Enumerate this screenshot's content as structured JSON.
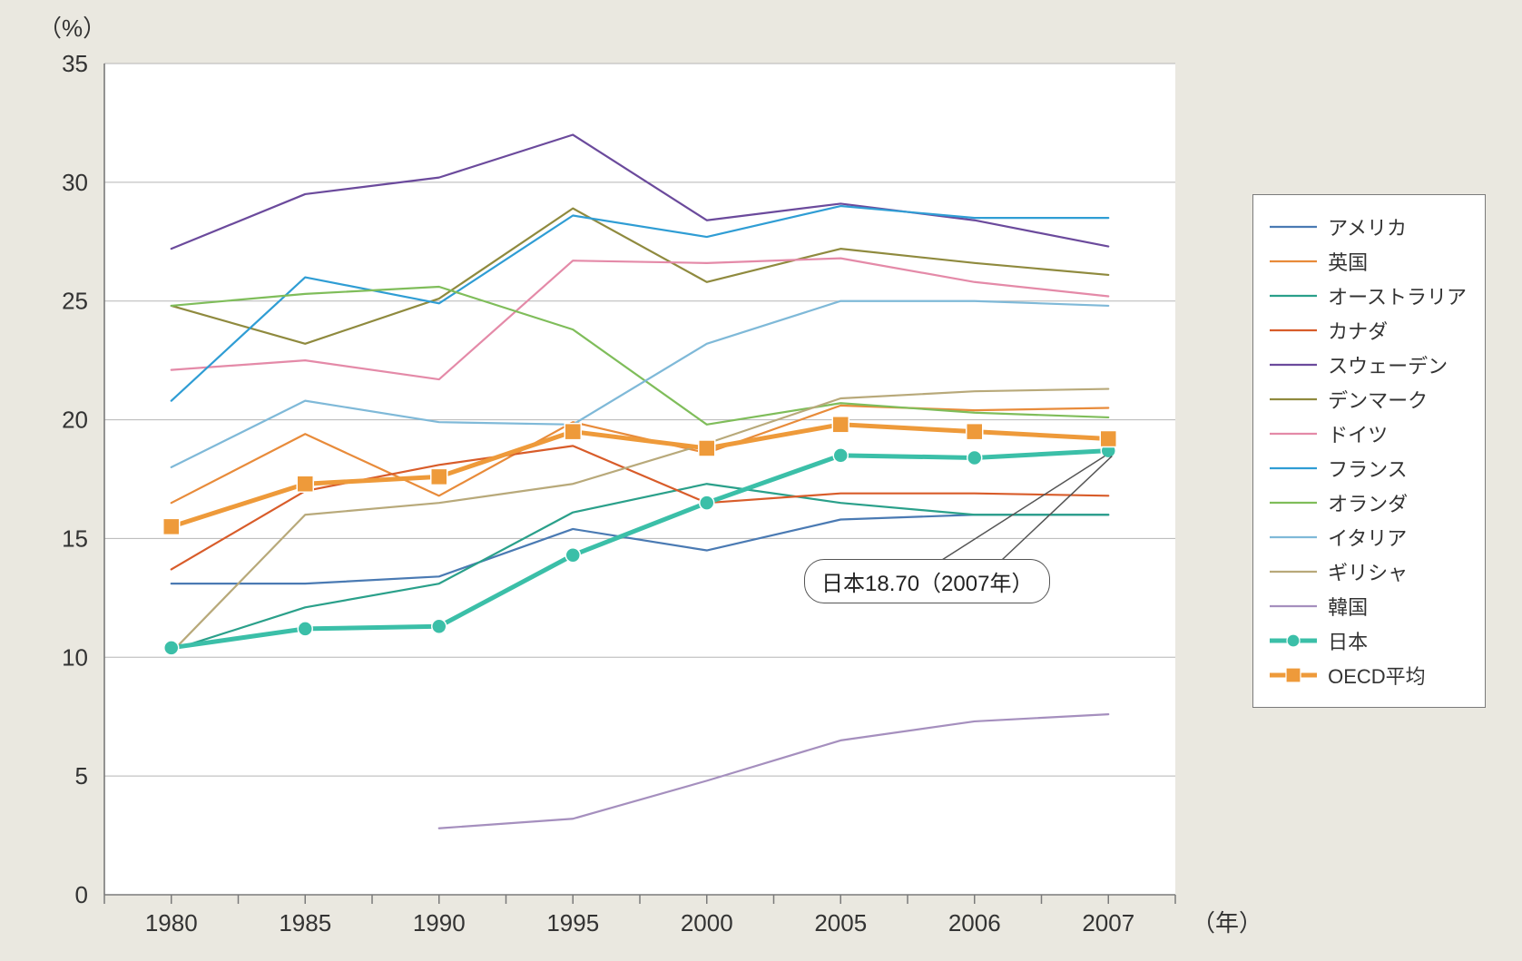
{
  "chart": {
    "type": "line",
    "background_color": "#eae8e0",
    "plot_background_color": "#ffffff",
    "axis_color": "#7a7a7a",
    "grid_color": "#b5b5b5",
    "tick_font_size": 26,
    "tick_font_color": "#333333",
    "y_unit_label": "（%）",
    "x_unit_label": "（年）",
    "ylim": [
      0,
      35
    ],
    "ytick_step": 5,
    "yticks": [
      "0",
      "5",
      "10",
      "15",
      "20",
      "25",
      "30",
      "35"
    ],
    "x_categories": [
      "1980",
      "1985",
      "1990",
      "1995",
      "2000",
      "2005",
      "2006",
      "2007"
    ],
    "line_width_default": 2.2,
    "line_width_highlight": 5,
    "marker_size_japan": 8,
    "marker_size_oecd": 9,
    "series": [
      {
        "name": "アメリカ",
        "color": "#4a7ab3",
        "values": [
          13.1,
          13.1,
          13.4,
          15.4,
          14.5,
          15.8,
          16.0,
          16.0
        ]
      },
      {
        "name": "英国",
        "color": "#e88b3a",
        "values": [
          16.5,
          19.4,
          16.8,
          19.9,
          18.6,
          20.6,
          20.4,
          20.5
        ]
      },
      {
        "name": "オーストラリア",
        "color": "#2aa08a",
        "values": [
          10.3,
          12.1,
          13.1,
          16.1,
          17.3,
          16.5,
          16.0,
          16.0
        ]
      },
      {
        "name": "カナダ",
        "color": "#d85c2a",
        "values": [
          13.7,
          17.0,
          18.1,
          18.9,
          16.5,
          16.9,
          16.9,
          16.8
        ]
      },
      {
        "name": "スウェーデン",
        "color": "#6b4a9c",
        "values": [
          27.2,
          29.5,
          30.2,
          32.0,
          28.4,
          29.1,
          28.4,
          27.3
        ]
      },
      {
        "name": "デンマーク",
        "color": "#8f8a3e",
        "values": [
          24.8,
          23.2,
          25.1,
          28.9,
          25.8,
          27.2,
          26.6,
          26.1
        ]
      },
      {
        "name": "ドイツ",
        "color": "#e48aa8",
        "values": [
          22.1,
          22.5,
          21.7,
          26.7,
          26.6,
          26.8,
          25.8,
          25.2
        ]
      },
      {
        "name": "フランス",
        "color": "#2f9dd4",
        "values": [
          20.8,
          26.0,
          24.9,
          28.6,
          27.7,
          29.0,
          28.5,
          28.5
        ]
      },
      {
        "name": "オランダ",
        "color": "#7fbd5a",
        "values": [
          24.8,
          25.3,
          25.6,
          23.8,
          19.8,
          20.7,
          20.3,
          20.1
        ]
      },
      {
        "name": "イタリア",
        "color": "#7fb9d8",
        "values": [
          18.0,
          20.8,
          19.9,
          19.8,
          23.2,
          25.0,
          25.0,
          24.8
        ]
      },
      {
        "name": "ギリシャ",
        "color": "#b8a97a",
        "values": [
          10.2,
          16.0,
          16.5,
          17.3,
          19.0,
          20.9,
          21.2,
          21.3
        ]
      },
      {
        "name": "韓国",
        "color": "#a58fbe",
        "values": [
          null,
          null,
          2.8,
          3.2,
          4.8,
          6.5,
          7.3,
          7.6
        ]
      },
      {
        "name": "日本",
        "color": "#3bbfa8",
        "values": [
          10.4,
          11.2,
          11.3,
          14.3,
          16.5,
          18.5,
          18.4,
          18.7
        ],
        "highlight": true,
        "marker": "circle"
      },
      {
        "name": "OECD平均",
        "color": "#ee9a3a",
        "values": [
          15.5,
          17.3,
          17.6,
          19.5,
          18.8,
          19.8,
          19.5,
          19.2
        ],
        "highlight": true,
        "marker": "square"
      }
    ],
    "callout": {
      "text": "日本18.70（2007年）",
      "target_series": "日本",
      "target_x": "2007"
    }
  }
}
